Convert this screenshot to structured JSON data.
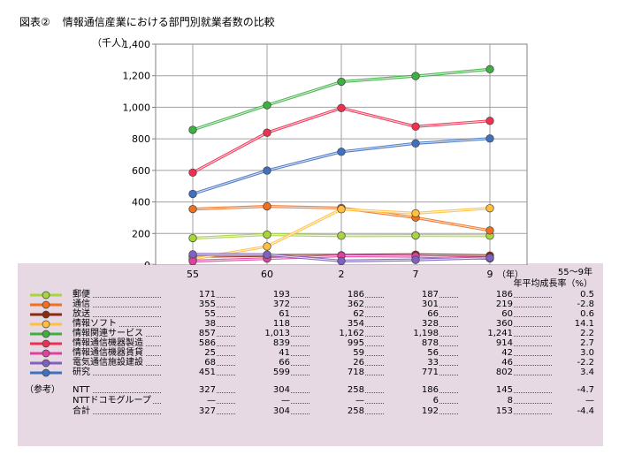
{
  "figure": {
    "number": "図表②",
    "title": "情報通信産業における部門別就業者数の比較"
  },
  "chart_data": {
    "type": "line",
    "ylabel": "（千人）",
    "ylim": [
      0,
      1400
    ],
    "yticks": [
      "0",
      "200",
      "400",
      "600",
      "800",
      "1,000",
      "1,200",
      "1,400"
    ],
    "ytick_values": [
      0,
      200,
      400,
      600,
      800,
      1000,
      1200,
      1400
    ],
    "categories": [
      "55",
      "60",
      "2",
      "7",
      "9"
    ],
    "x_unit": "（年）",
    "grid": true,
    "series": [
      {
        "name": "郵便",
        "color": "#a8d43c",
        "values": [
          171,
          193,
          186,
          187,
          186
        ]
      },
      {
        "name": "通信",
        "color": "#f07020",
        "values": [
          355,
          372,
          362,
          301,
          219
        ]
      },
      {
        "name": "放送",
        "color": "#8a2a10",
        "values": [
          55,
          61,
          62,
          66,
          60
        ]
      },
      {
        "name": "情報ソフト",
        "color": "#ffc040",
        "values": [
          38,
          118,
          354,
          328,
          360
        ]
      },
      {
        "name": "情報関連サービス",
        "color": "#3cb040",
        "values": [
          857,
          1013,
          1162,
          1198,
          1241
        ]
      },
      {
        "name": "情報通信機器製造",
        "color": "#f03050",
        "values": [
          586,
          839,
          995,
          878,
          914
        ]
      },
      {
        "name": "情報通信機器賃貸",
        "color": "#e040a0",
        "values": [
          25,
          41,
          59,
          56,
          42
        ]
      },
      {
        "name": "電気通信施設建設",
        "color": "#8060c0",
        "values": [
          68,
          66,
          26,
          33,
          46
        ]
      },
      {
        "name": "研究",
        "color": "#4070c0",
        "values": [
          451,
          599,
          718,
          771,
          802
        ]
      }
    ]
  },
  "table": {
    "rate_header_1": "55～9年",
    "rate_header_2": "年平均成長率（%）",
    "rows": [
      {
        "label": "郵便",
        "cells": [
          "171",
          "193",
          "186",
          "187",
          "186"
        ],
        "rate": "0.5"
      },
      {
        "label": "通信",
        "cells": [
          "355",
          "372",
          "362",
          "301",
          "219"
        ],
        "rate": "-2.8"
      },
      {
        "label": "放送",
        "cells": [
          "55",
          "61",
          "62",
          "66",
          "60"
        ],
        "rate": "0.6"
      },
      {
        "label": "情報ソフト",
        "cells": [
          "38",
          "118",
          "354",
          "328",
          "360"
        ],
        "rate": "14.1"
      },
      {
        "label": "情報関連サービス",
        "cells": [
          "857",
          "1,013",
          "1,162",
          "1,198",
          "1,241"
        ],
        "rate": "2.2"
      },
      {
        "label": "情報通信機器製造",
        "cells": [
          "586",
          "839",
          "995",
          "878",
          "914"
        ],
        "rate": "2.7"
      },
      {
        "label": "情報通信機器賃貸",
        "cells": [
          "25",
          "41",
          "59",
          "56",
          "42"
        ],
        "rate": "3.0"
      },
      {
        "label": "電気通信施設建設",
        "cells": [
          "68",
          "66",
          "26",
          "33",
          "46"
        ],
        "rate": "-2.2"
      },
      {
        "label": "研究",
        "cells": [
          "451",
          "599",
          "718",
          "771",
          "802"
        ],
        "rate": "3.4"
      }
    ],
    "reference_label": "（参考）",
    "ref_rows": [
      {
        "label": "NTT",
        "cells": [
          "327",
          "304",
          "258",
          "186",
          "145"
        ],
        "rate": "-4.7"
      },
      {
        "label": "NTTドコモグループ",
        "cells": [
          "—",
          "—",
          "—",
          "6",
          "8"
        ],
        "rate": "—"
      },
      {
        "label": "合計",
        "cells": [
          "327",
          "304",
          "258",
          "192",
          "153"
        ],
        "rate": "-4.4"
      }
    ]
  }
}
